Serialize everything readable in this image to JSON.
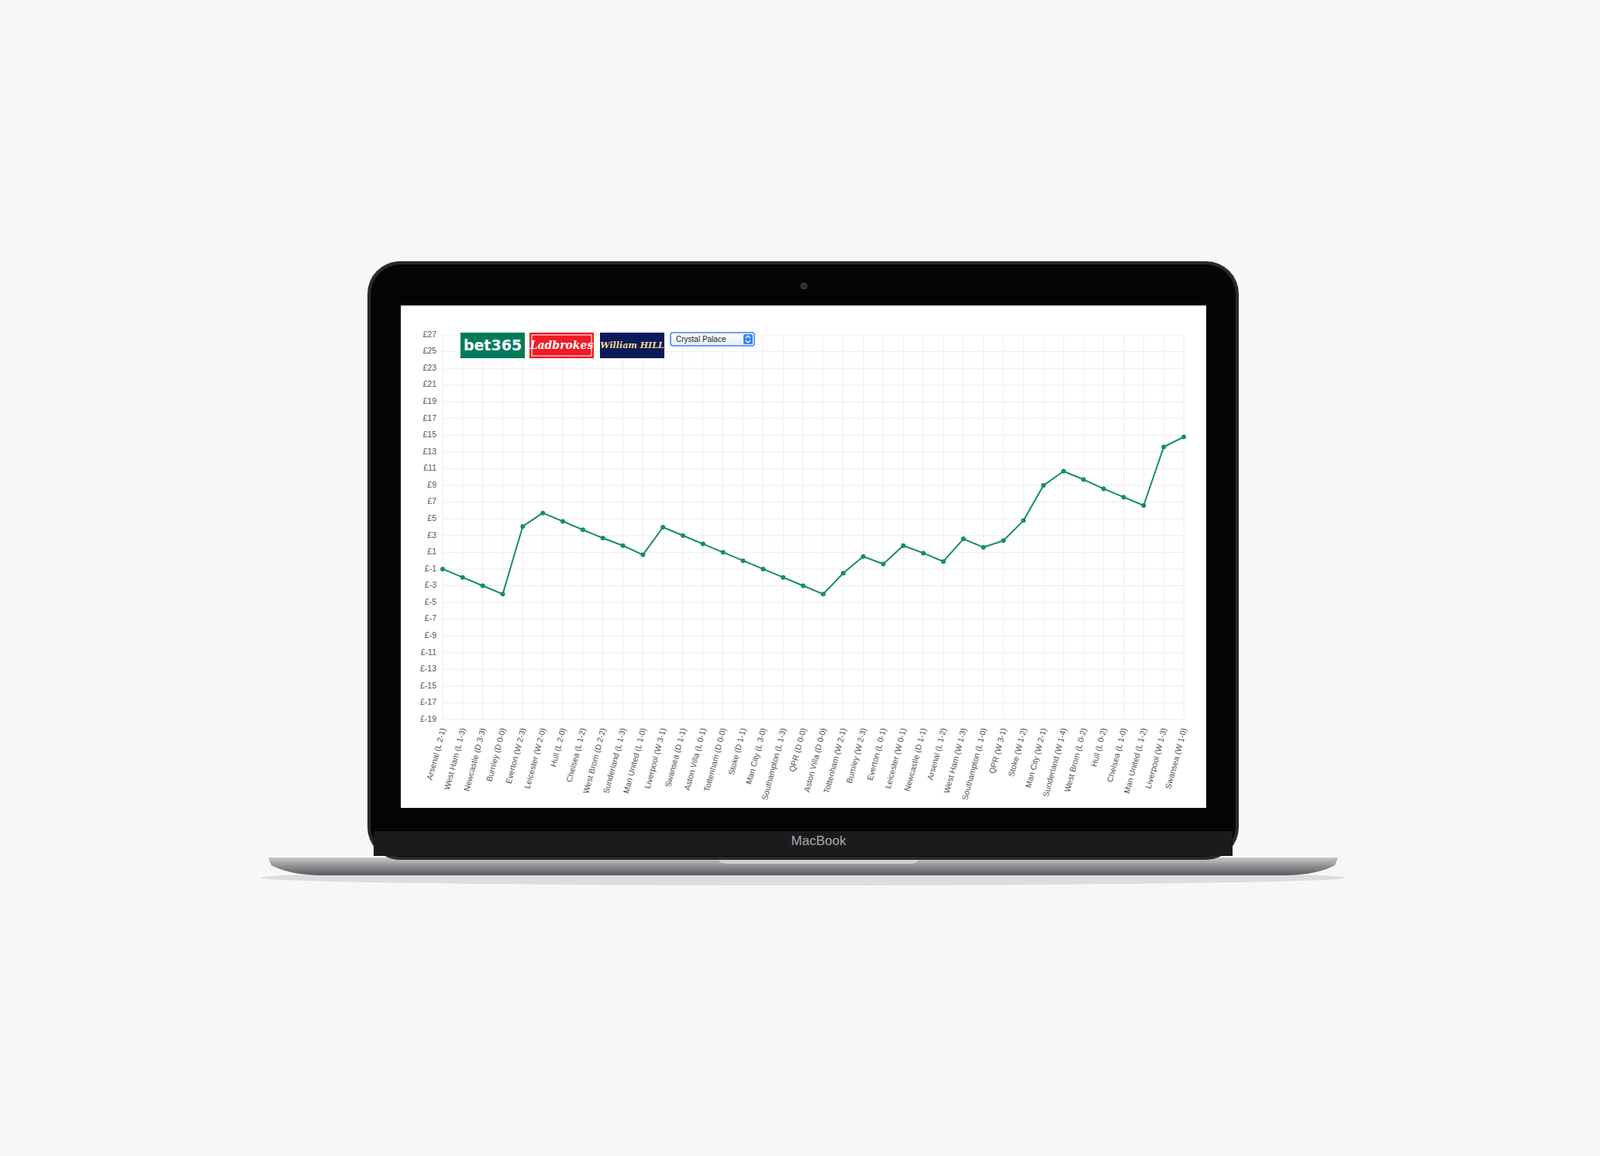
{
  "chart_data": {
    "type": "line",
    "categories": [
      "Arsenal (L 2-1)",
      "West Ham (L 1-3)",
      "Newcastle (D 3-3)",
      "Burnley (D 0-0)",
      "Everton (W 2-3)",
      "Leicester (W 2-0)",
      "Hull (L 2-0)",
      "Chelsea (L 1-2)",
      "West Brom (D 2-2)",
      "Sunderland (L 1-3)",
      "Man United (L 1-0)",
      "Liverpool (W 3-1)",
      "Swansea (D 1-1)",
      "Aston Villa (L 0-1)",
      "Tottenham (D 0-0)",
      "Stoke (D 1-1)",
      "Man City (L 3-0)",
      "Southampton (L 1-3)",
      "QPR (D 0-0)",
      "Aston Villa (D 0-0)",
      "Tottenham (W 2-1)",
      "Burnley (W 2-3)",
      "Everton (L 0-1)",
      "Leicester (W 0-1)",
      "Newcastle (D 1-1)",
      "Arsenal (L 1-2)",
      "West Ham (W 1-3)",
      "Southampton (L 1-0)",
      "QPR (W 3-1)",
      "Stoke (W 1-2)",
      "Man City (W 2-1)",
      "Sunderland (W 1-4)",
      "West Brom (L 0-2)",
      "Hull (L 0-2)",
      "Chelsea (L 1-0)",
      "Man United (L 1-2)",
      "Liverpool (W 1-3)",
      "Swansea (W 1-0)"
    ],
    "values": [
      -1,
      -2,
      -3,
      -4,
      4.1,
      5.7,
      4.7,
      3.7,
      2.7,
      1.8,
      0.7,
      4,
      3,
      2,
      1,
      0,
      -1,
      -2,
      -3,
      -4,
      -1.5,
      0.5,
      -0.4,
      1.8,
      0.9,
      -0.1,
      2.6,
      1.6,
      2.4,
      4.8,
      9,
      10.7,
      9.7,
      8.6,
      7.6,
      6.6,
      13.6,
      14.8
    ],
    "color": "#148f63",
    "marker": "circle",
    "ylim": [
      -19,
      27
    ],
    "yticks": [
      {
        "value": -19,
        "label": "£-19"
      },
      {
        "value": -17,
        "label": "£-17"
      },
      {
        "value": -15,
        "label": "£-15"
      },
      {
        "value": -13,
        "label": "£-13"
      },
      {
        "value": -11,
        "label": "£-11"
      },
      {
        "value": -9,
        "label": "£-9"
      },
      {
        "value": -7,
        "label": "£-7"
      },
      {
        "value": -5,
        "label": "£-5"
      },
      {
        "value": -3,
        "label": "£-3"
      },
      {
        "value": -1,
        "label": "£-1"
      },
      {
        "value": 1,
        "label": "£1"
      },
      {
        "value": 3,
        "label": "£3"
      },
      {
        "value": 5,
        "label": "£5"
      },
      {
        "value": 7,
        "label": "£7"
      },
      {
        "value": 9,
        "label": "£9"
      },
      {
        "value": 11,
        "label": "£11"
      },
      {
        "value": 13,
        "label": "£13"
      },
      {
        "value": 15,
        "label": "£15"
      },
      {
        "value": 17,
        "label": "£17"
      },
      {
        "value": 19,
        "label": "£19"
      },
      {
        "value": 21,
        "label": "£21"
      },
      {
        "value": 23,
        "label": "£23"
      },
      {
        "value": 25,
        "label": "£25"
      },
      {
        "value": 27,
        "label": "£27"
      }
    ],
    "grid": true
  },
  "header": {
    "bookmakers": [
      "bet365",
      "Ladbrokes",
      "William HILL"
    ],
    "team_select": "Crystal Palace"
  },
  "device": {
    "label": "MacBook"
  }
}
